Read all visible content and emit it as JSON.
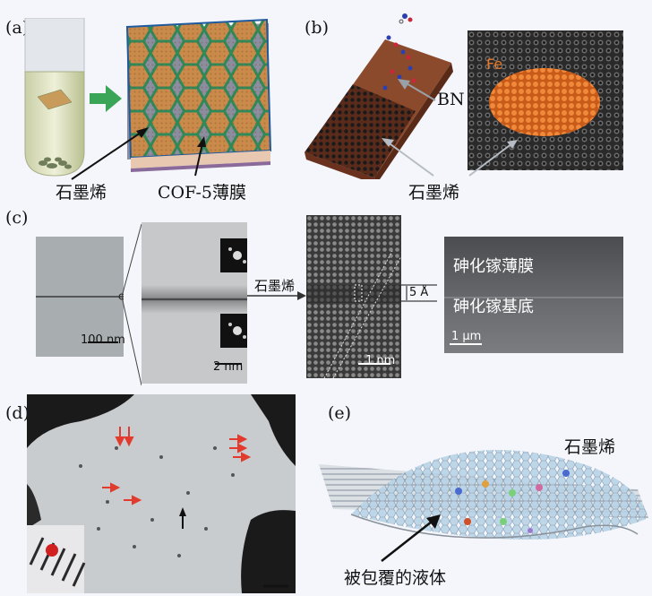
{
  "panels": {
    "a": {
      "label": "(a)",
      "graphene_label": "石墨烯",
      "cof_label": "COF-5薄膜"
    },
    "b": {
      "label": "(b)",
      "fe_label": "Fe",
      "bn_label": "BN",
      "graphene_label": "石墨烯"
    },
    "c": {
      "label": "(c)",
      "scale1": "100 nm",
      "scale2": "2 nm",
      "graphene_arrow": "石墨烯",
      "scale3": "1 nm",
      "spacing": "5 Å",
      "film_label": "砷化镓薄膜",
      "substrate_label": "砷化镓基底",
      "scale4": "1 μm"
    },
    "d": {
      "label": "(d)"
    },
    "e": {
      "label": "(e)",
      "graphene_label": "石墨烯",
      "liquid_label": "被包覆的液体"
    }
  },
  "colors": {
    "background": "#f4f6fb",
    "arrow_green": "#3aa556",
    "fe_orange": "#e8792a",
    "bn_blue": "#2c3fae",
    "substrate_brown": "#7a3a22",
    "red_arrow": "#e23b2e"
  }
}
